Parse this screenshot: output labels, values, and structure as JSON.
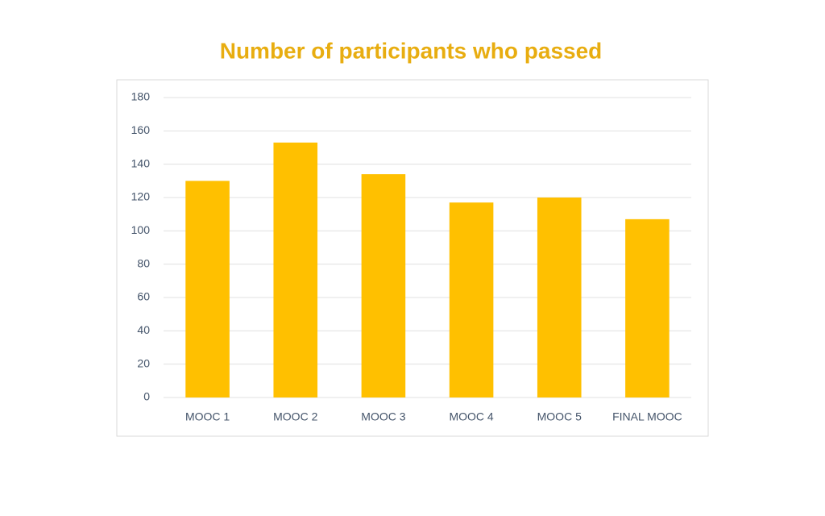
{
  "chart_data": {
    "type": "bar",
    "title": "Number of participants who passed",
    "categories": [
      "MOOC 1",
      "MOOC 2",
      "MOOC 3",
      "MOOC 4",
      "MOOC 5",
      "FINAL MOOC"
    ],
    "values": [
      130,
      153,
      134,
      117,
      120,
      107
    ],
    "color": "#ffc000",
    "ylim": [
      0,
      180
    ],
    "yticks": [
      0,
      20,
      40,
      60,
      80,
      100,
      120,
      140,
      160,
      180
    ],
    "grid": true
  }
}
